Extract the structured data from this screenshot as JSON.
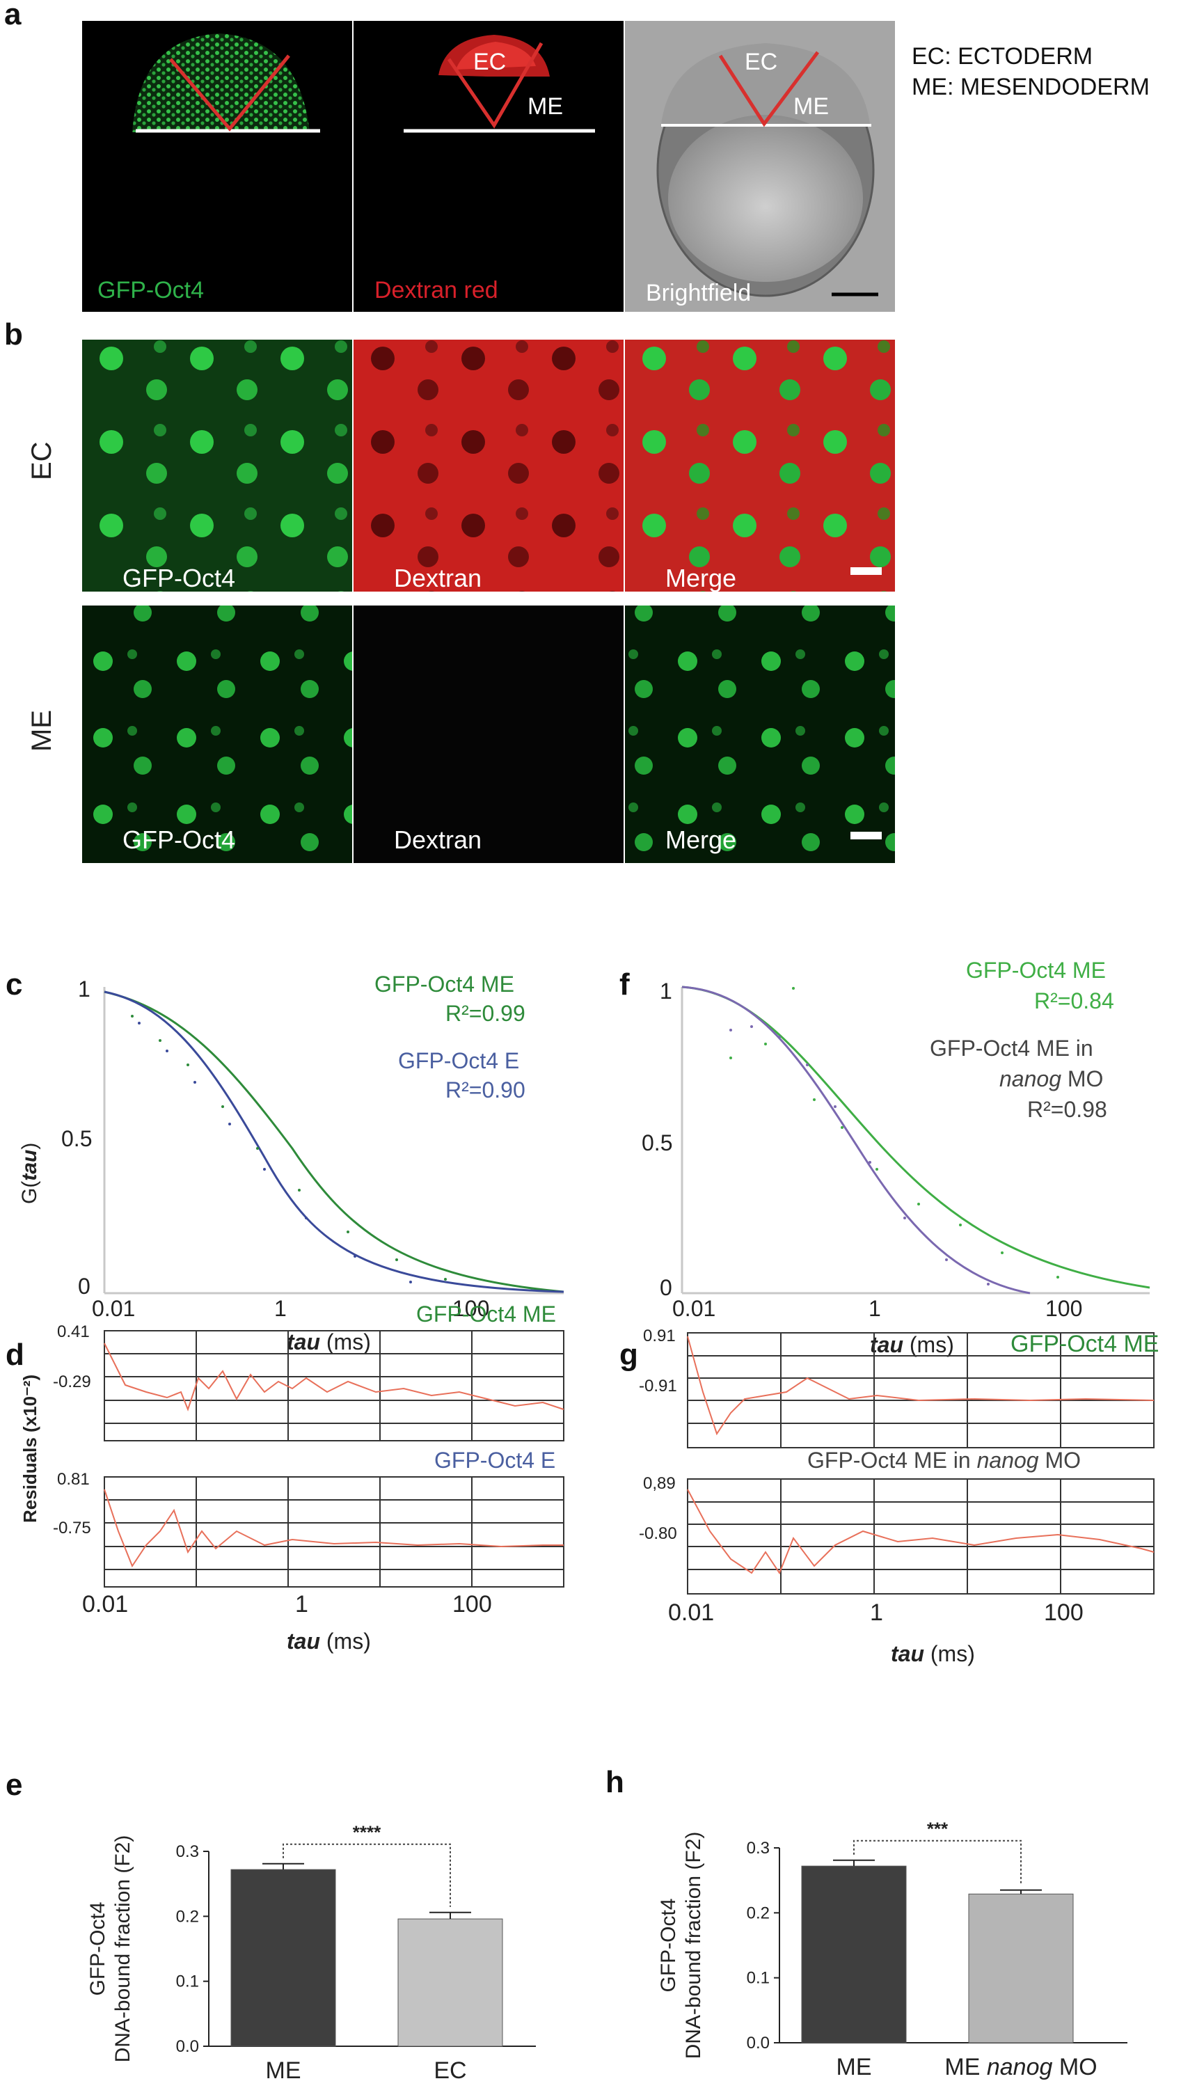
{
  "panel_letters": {
    "a": "a",
    "b": "b",
    "c": "c",
    "d": "d",
    "e": "e",
    "f": "f",
    "g": "g",
    "h": "h"
  },
  "panel_a": {
    "labels": [
      "GFP-Oct4",
      "Dextran red",
      "Brightfield"
    ],
    "region_ec": "EC",
    "region_me": "ME",
    "legend": [
      "EC: ECTODERM",
      "ME: MESENDODERM"
    ],
    "colors": {
      "green": "#2fb24a",
      "red": "#d8202a",
      "gray": "#9a9a9a"
    }
  },
  "panel_b": {
    "row_labels": [
      "EC",
      "ME"
    ],
    "col_labels": [
      "GFP-Oct4",
      "Dextran",
      "Merge"
    ]
  },
  "panel_c": {
    "ylabel_prefix": "G(",
    "ylabel_var": "tau",
    "ylabel_suffix": ")",
    "xlabel_var": "tau",
    "xlabel_unit": " (ms)",
    "xticks": [
      "0.01",
      "1",
      "100"
    ],
    "yticks": [
      "1",
      "0.5",
      "0"
    ],
    "legend": [
      {
        "name": "GFP-Oct4 ME",
        "r2": "R²=0.99",
        "color": "#2e8b3a"
      },
      {
        "name": "GFP-Oct4 E",
        "r2": "R²=0.90",
        "color": "#4a5fa0"
      }
    ]
  },
  "panel_f": {
    "xlabel_var": "tau",
    "xlabel_unit": " (ms)",
    "xticks": [
      "0.01",
      "1",
      "100"
    ],
    "yticks": [
      "1",
      "0.5",
      "0"
    ],
    "legend1_name": "GFP-Oct4 ME",
    "legend1_r2": "R²=0.84",
    "legend2_line1": "GFP-Oct4 ME in",
    "legend2_line2": "nanog",
    "legend2_line2b": " MO",
    "legend2_r2": "R²=0.98"
  },
  "panel_d": {
    "ylabel": "Residuals (x10⁻²)",
    "top_title": "GFP-Oct4 ME",
    "top_yticks": [
      "0.41",
      "-0.29"
    ],
    "bottom_title": "GFP-Oct4 E",
    "bottom_yticks": [
      "0.81",
      "-0.75"
    ],
    "xticks": [
      "0.01",
      "1",
      "100"
    ],
    "xlabel_var": "tau",
    "xlabel_unit": " (ms)"
  },
  "panel_g": {
    "top_title": "GFP-Oct4 ME",
    "top_yticks": [
      "0.91",
      "-0.91"
    ],
    "bottom_title_a": "GFP-Oct4 ME in ",
    "bottom_title_b": "nanog",
    "bottom_title_c": " MO",
    "bottom_yticks": [
      "0,89",
      "-0.80"
    ],
    "xticks": [
      "0.01",
      "1",
      "100"
    ],
    "xlabel_var": "tau",
    "xlabel_unit": " (ms)"
  },
  "chart_data": [
    {
      "type": "bar",
      "panel": "e",
      "categories": [
        "ME",
        "EC"
      ],
      "values": [
        0.272,
        0.196
      ],
      "errors": [
        0.009,
        0.01
      ],
      "ylabel_line1": "GFP-Oct4",
      "ylabel_line2": "DNA-bound fraction (F2)",
      "ylim": [
        0.0,
        0.3
      ],
      "yticks": [
        "0.0",
        "0.1",
        "0.2",
        "0.3"
      ],
      "significance": "****",
      "colors": [
        "#3f3f3f",
        "#c3c3c3"
      ]
    },
    {
      "type": "bar",
      "panel": "h",
      "categories": [
        "ME",
        "ME nanog MO"
      ],
      "category_parts": [
        [
          "ME",
          "",
          ""
        ],
        [
          "ME ",
          "nanog",
          " MO"
        ]
      ],
      "values": [
        0.272,
        0.229
      ],
      "errors": [
        0.009,
        0.006
      ],
      "ylabel_line1": "GFP-Oct4",
      "ylabel_line2": "DNA-bound fraction (F2)",
      "ylim": [
        0.0,
        0.3
      ],
      "yticks": [
        "0.0",
        "0.1",
        "0.2",
        "0.3"
      ],
      "significance": "***",
      "colors": [
        "#3f3f3f",
        "#b5b5b5"
      ]
    }
  ]
}
